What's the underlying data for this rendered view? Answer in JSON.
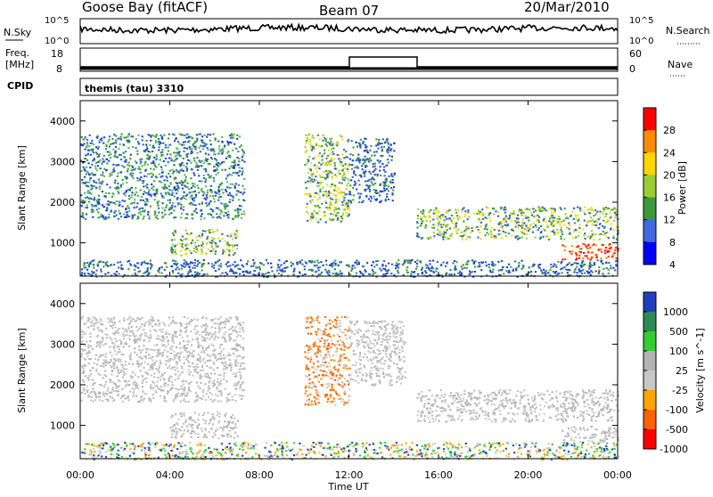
{
  "header": {
    "station": "Goose Bay (fitACF)",
    "beam": "Beam 07",
    "date": "20/Mar/2010"
  },
  "noise_panel": {
    "left_label": "N.Sky",
    "right_label": "N.Search",
    "left_ticks": [
      "10^5",
      "10^0"
    ],
    "right_ticks": [
      "10^5",
      "10^0"
    ]
  },
  "freq_panel": {
    "left_label_1": "Freq.",
    "left_label_2": "[MHz]",
    "right_label": "Nave",
    "left_ticks": [
      "18",
      "8"
    ],
    "right_ticks": [
      "60",
      "0"
    ]
  },
  "cpid_panel": {
    "label": "CPID",
    "text": "themis (tau) 3310"
  },
  "x_axis": {
    "label": "Time UT",
    "ticks": [
      "00:00",
      "04:00",
      "08:00",
      "12:00",
      "16:00",
      "20:00",
      "00:00"
    ]
  },
  "y_axis": {
    "label": "Slant Range [km]",
    "ticks": [
      "4000",
      "3000",
      "2000",
      "1000"
    ]
  },
  "chart_data": [
    {
      "type": "heatmap",
      "title": "",
      "xlabel": "",
      "ylabel": "Slant Range [km]",
      "xlim_hours": [
        0,
        24
      ],
      "ylim": [
        180,
        4500
      ],
      "colorbar": {
        "label": "Power [dB]",
        "ticks": [
          "28",
          "24",
          "20",
          "16",
          "12",
          "8",
          "4"
        ],
        "colors": [
          "#ff0000",
          "#ff8c00",
          "#ffd700",
          "#9acd32",
          "#3a9a3a",
          "#4169e1",
          "#0000ff"
        ]
      },
      "regions": [
        {
          "t": [
            0.0,
            7.3
          ],
          "r": [
            1600,
            3700
          ],
          "level": "low-mid"
        },
        {
          "t": [
            4.0,
            7.0
          ],
          "r": [
            700,
            1350
          ],
          "level": "mid"
        },
        {
          "t": [
            10.0,
            12.0
          ],
          "r": [
            1500,
            3700
          ],
          "level": "mid"
        },
        {
          "t": [
            12.0,
            14.0
          ],
          "r": [
            2000,
            3600
          ],
          "level": "low"
        },
        {
          "t": [
            15.0,
            24.0
          ],
          "r": [
            1100,
            1900
          ],
          "level": "mid"
        },
        {
          "t": [
            21.5,
            24.0
          ],
          "r": [
            600,
            1000
          ],
          "level": "high"
        },
        {
          "t": [
            0.0,
            24.0
          ],
          "r": [
            180,
            600
          ],
          "level": "low"
        }
      ]
    },
    {
      "type": "heatmap",
      "title": "",
      "xlabel": "Time UT",
      "ylabel": "Slant Range [km]",
      "xlim_hours": [
        0,
        24
      ],
      "ylim": [
        180,
        4500
      ],
      "colorbar": {
        "label": "Velocity [m s^-1]",
        "ticks": [
          "1000",
          "500",
          "100",
          "25",
          "-25",
          "-100",
          "-500",
          "-1000"
        ],
        "colors": [
          "#1f3fbf",
          "#2e8b57",
          "#32cd32",
          "#b4b4b4",
          "#c8c8c8",
          "#ffa500",
          "#ff6000",
          "#ff0000"
        ]
      },
      "regions": [
        {
          "t": [
            0.0,
            7.3
          ],
          "r": [
            1600,
            3700
          ],
          "level": "grey"
        },
        {
          "t": [
            4.0,
            7.0
          ],
          "r": [
            700,
            1350
          ],
          "level": "grey"
        },
        {
          "t": [
            10.0,
            12.0
          ],
          "r": [
            1500,
            3700
          ],
          "level": "orange"
        },
        {
          "t": [
            12.0,
            14.5
          ],
          "r": [
            2000,
            3600
          ],
          "level": "grey"
        },
        {
          "t": [
            15.0,
            24.0
          ],
          "r": [
            1100,
            1900
          ],
          "level": "grey"
        },
        {
          "t": [
            21.5,
            24.0
          ],
          "r": [
            600,
            1000
          ],
          "level": "grey"
        },
        {
          "t": [
            0.0,
            24.0
          ],
          "r": [
            180,
            600
          ],
          "level": "mixed"
        }
      ]
    }
  ]
}
